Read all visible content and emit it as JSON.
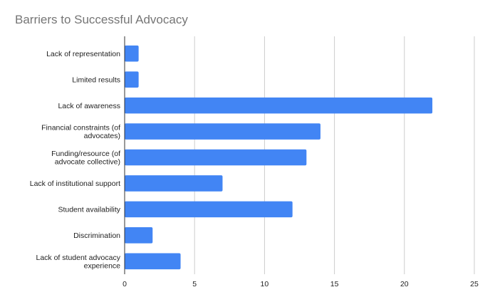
{
  "chart_data": {
    "type": "bar",
    "orientation": "horizontal",
    "title": "Barriers to Successful Advocacy",
    "xlabel": "",
    "ylabel": "",
    "categories": [
      [
        "Lack of representation"
      ],
      [
        "Limited results"
      ],
      [
        "Lack of awareness"
      ],
      [
        "Financial constraints (of",
        "advocates)"
      ],
      [
        "Funding/resource (of",
        "advocate collective)"
      ],
      [
        "Lack of institutional support"
      ],
      [
        "Student availability"
      ],
      [
        "Discrimination"
      ],
      [
        "Lack of student advocacy",
        "experience"
      ]
    ],
    "values": [
      1,
      1,
      22,
      14,
      13,
      7,
      12,
      2,
      4
    ],
    "xlim": [
      0,
      25
    ],
    "xticks": [
      0,
      5,
      10,
      15,
      20,
      25
    ],
    "grid": "vertical",
    "legend": "none",
    "bar_color": "#4285f4"
  }
}
